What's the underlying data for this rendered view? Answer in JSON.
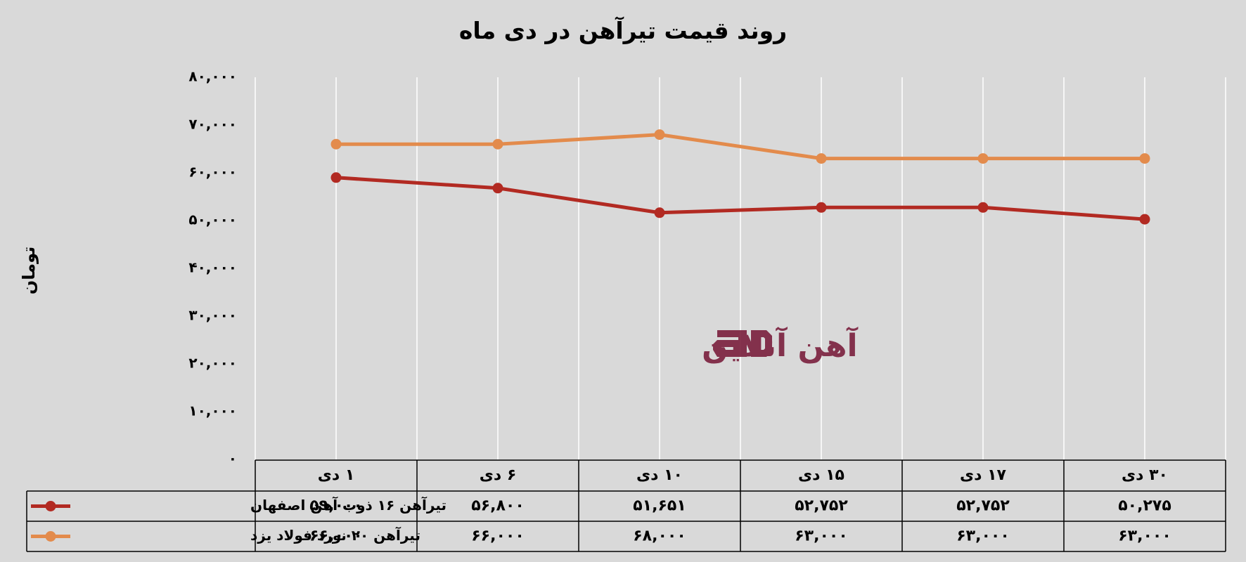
{
  "colors": {
    "background": "#d9d9d9",
    "series1": "#b22a22",
    "series2": "#e38b4c",
    "grid": "#ffffff",
    "logo": "#7a1f3d"
  },
  "watermark": {
    "text": "آهن آنلاین",
    "mark": "aD"
  },
  "chart_data": {
    "type": "line",
    "title": "روند قیمت تیرآهن در دی ماه",
    "ylabel": "تومان",
    "xlabel": "",
    "ylim": [
      0,
      80000
    ],
    "grid": true,
    "legend": "data-table",
    "y_ticks": [
      "۰",
      "۱۰,۰۰۰",
      "۲۰,۰۰۰",
      "۳۰,۰۰۰",
      "۴۰,۰۰۰",
      "۵۰,۰۰۰",
      "۶۰,۰۰۰",
      "۷۰,۰۰۰",
      "۸۰,۰۰۰"
    ],
    "categories": [
      "۱ دی",
      "۶ دی",
      "۱۰ دی",
      "۱۵ دی",
      "۱۷ دی",
      "۳۰ دی"
    ],
    "series": [
      {
        "name": "تیرآهن ۱۶ ذوب آهن اصفهان",
        "values": [
          59000,
          56800,
          51651,
          52752,
          52752,
          50275
        ],
        "labels": [
          "۵۹,۰۰۰",
          "۵۶,۸۰۰",
          "۵۱,۶۵۱",
          "۵۲,۷۵۲",
          "۵۲,۷۵۲",
          "۵۰,۲۷۵"
        ]
      },
      {
        "name": "تیرآهن ۲۰ نورد فولاد یزد",
        "values": [
          66000,
          66000,
          68000,
          63000,
          63000,
          63000
        ],
        "labels": [
          "۶۶,۰۰۰",
          "۶۶,۰۰۰",
          "۶۸,۰۰۰",
          "۶۳,۰۰۰",
          "۶۳,۰۰۰",
          "۶۳,۰۰۰"
        ]
      }
    ]
  }
}
